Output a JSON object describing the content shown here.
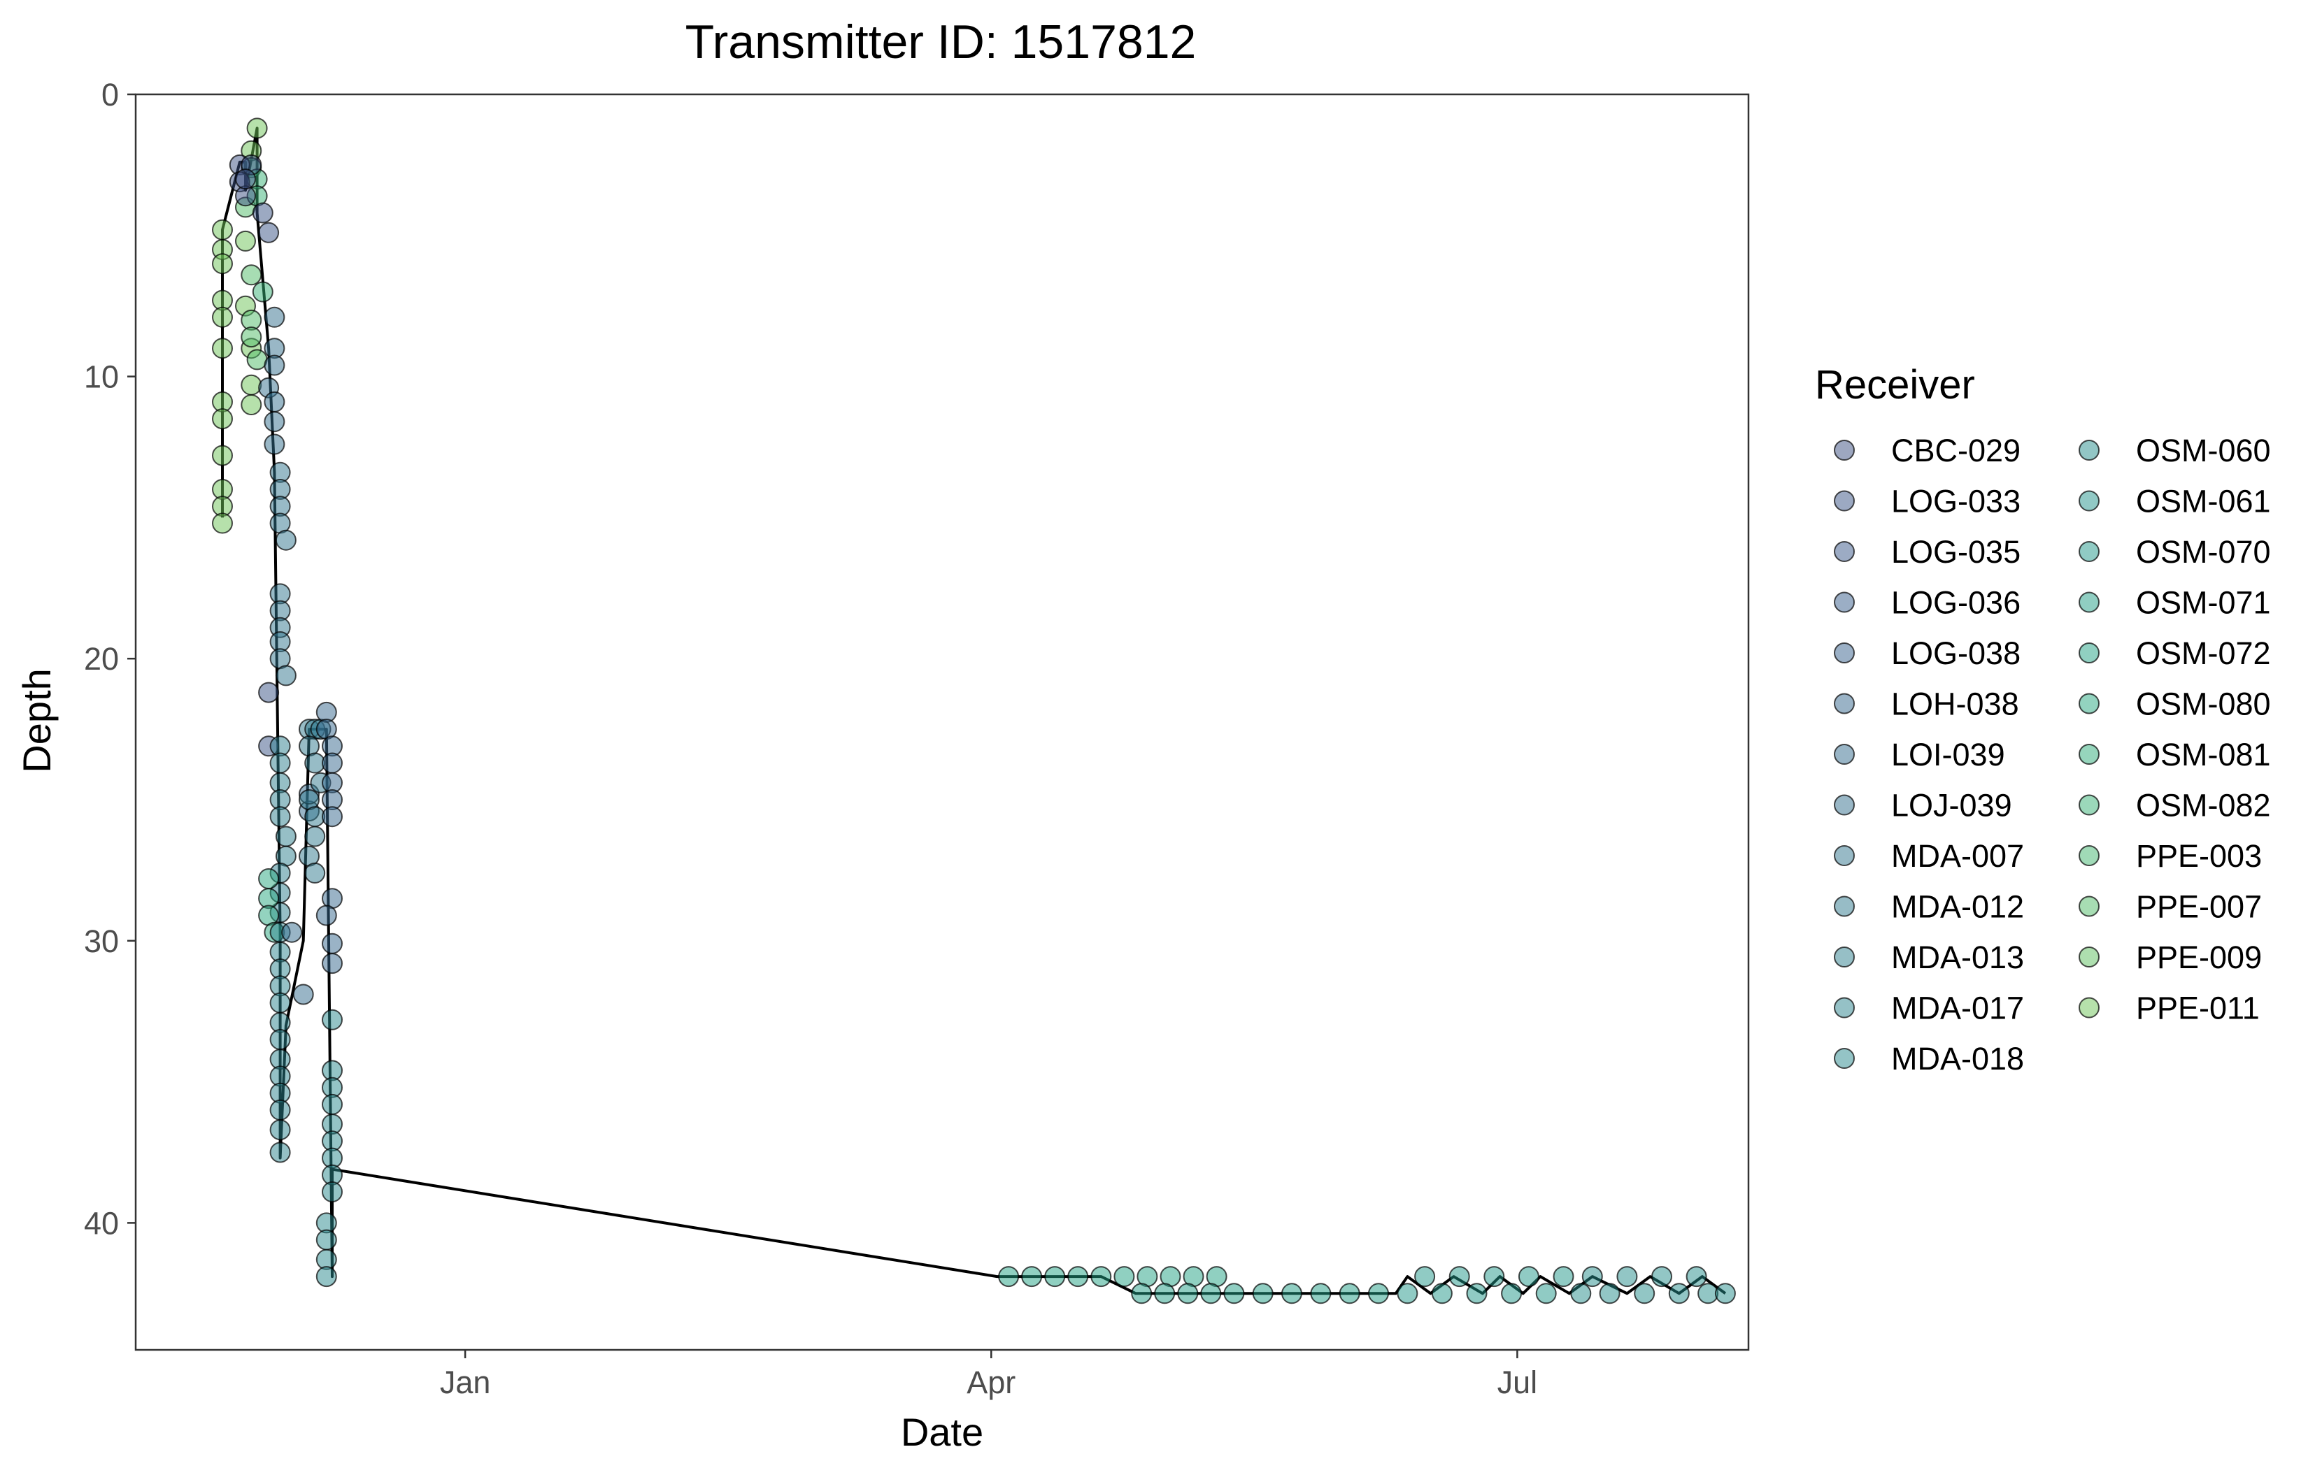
{
  "chart_data": {
    "type": "scatter",
    "title": "Transmitter ID: 1517812",
    "xlabel": "Date",
    "ylabel": "Depth",
    "y_reversed": true,
    "xlim": [
      "2023-11-05",
      "2024-08-10"
    ],
    "ylim": [
      0,
      44.5
    ],
    "x_ticks": [
      {
        "date": "2024-01-01",
        "label": "Jan"
      },
      {
        "date": "2024-04-01",
        "label": "Apr"
      },
      {
        "date": "2024-07-01",
        "label": "Jul"
      }
    ],
    "y_ticks": [
      0,
      10,
      20,
      30,
      40
    ],
    "grid": false,
    "legend": {
      "title": "Receiver",
      "position": "right",
      "columns": 2,
      "entries": [
        {
          "name": "CBC-029",
          "color": "#3b4f82"
        },
        {
          "name": "LOG-033",
          "color": "#3a5386"
        },
        {
          "name": "LOG-035",
          "color": "#39588a"
        },
        {
          "name": "LOG-036",
          "color": "#385d8c"
        },
        {
          "name": "LOG-038",
          "color": "#37628d"
        },
        {
          "name": "LOH-038",
          "color": "#36678e"
        },
        {
          "name": "LOI-039",
          "color": "#346b8e"
        },
        {
          "name": "LOJ-039",
          "color": "#33708e"
        },
        {
          "name": "MDA-007",
          "color": "#31758e"
        },
        {
          "name": "MDA-012",
          "color": "#2f7a8e"
        },
        {
          "name": "MDA-013",
          "color": "#2d7f8e"
        },
        {
          "name": "MDA-017",
          "color": "#2b848e"
        },
        {
          "name": "MDA-018",
          "color": "#29898e"
        },
        {
          "name": "OSM-060",
          "color": "#268e8c"
        },
        {
          "name": "OSM-061",
          "color": "#24938b"
        },
        {
          "name": "OSM-070",
          "color": "#229889"
        },
        {
          "name": "OSM-071",
          "color": "#219d86"
        },
        {
          "name": "OSM-072",
          "color": "#22a283"
        },
        {
          "name": "OSM-080",
          "color": "#27a77f"
        },
        {
          "name": "OSM-081",
          "color": "#2eac7a"
        },
        {
          "name": "OSM-082",
          "color": "#37b175"
        },
        {
          "name": "PPE-003",
          "color": "#42b66f"
        },
        {
          "name": "PPE-007",
          "color": "#4fbb68"
        },
        {
          "name": "PPE-009",
          "color": "#5ec060"
        },
        {
          "name": "PPE-011",
          "color": "#6ec457"
        }
      ]
    },
    "series": [
      {
        "receiver": "PPE-011",
        "points": [
          [
            "2023-11-20",
            4.8
          ],
          [
            "2023-11-20",
            5.5
          ],
          [
            "2023-11-20",
            6.0
          ],
          [
            "2023-11-20",
            7.3
          ],
          [
            "2023-11-20",
            7.9
          ],
          [
            "2023-11-20",
            9.0
          ],
          [
            "2023-11-20",
            10.9
          ],
          [
            "2023-11-20",
            11.5
          ],
          [
            "2023-11-20",
            12.8
          ],
          [
            "2023-11-20",
            14.0
          ],
          [
            "2023-11-20",
            14.6
          ],
          [
            "2023-11-20",
            15.2
          ],
          [
            "2023-11-26",
            1.2
          ],
          [
            "2023-11-25",
            2.0
          ],
          [
            "2023-11-24",
            5.2
          ],
          [
            "2023-11-24",
            7.5
          ],
          [
            "2023-11-25",
            9.0
          ],
          [
            "2023-11-25",
            10.3
          ],
          [
            "2023-11-25",
            11.0
          ]
        ]
      },
      {
        "receiver": "PPE-007",
        "points": [
          [
            "2023-11-24",
            4.0
          ],
          [
            "2023-11-25",
            6.4
          ],
          [
            "2023-11-25",
            8.0
          ],
          [
            "2023-11-25",
            8.6
          ],
          [
            "2023-11-26",
            9.4
          ]
        ]
      },
      {
        "receiver": "OSM-082",
        "points": [
          [
            "2023-11-25",
            2.6
          ],
          [
            "2023-11-26",
            3.0
          ],
          [
            "2023-11-26",
            3.6
          ],
          [
            "2023-11-27",
            7.0
          ]
        ]
      },
      {
        "receiver": "CBC-029",
        "points": [
          [
            "2023-11-23",
            2.5
          ],
          [
            "2023-11-23",
            3.1
          ],
          [
            "2023-11-24",
            3.6
          ],
          [
            "2023-11-25",
            2.5
          ],
          [
            "2023-11-24",
            3.0
          ]
        ]
      },
      {
        "receiver": "LOG-033",
        "points": [
          [
            "2023-11-27",
            4.2
          ],
          [
            "2023-11-28",
            4.9
          ],
          [
            "2023-11-28",
            21.2
          ],
          [
            "2023-11-28",
            23.1
          ]
        ]
      },
      {
        "receiver": "LOJ-039",
        "points": [
          [
            "2023-11-29",
            7.9
          ],
          [
            "2023-11-29",
            9.0
          ],
          [
            "2023-11-29",
            9.6
          ],
          [
            "2023-11-28",
            10.4
          ],
          [
            "2023-11-29",
            10.9
          ],
          [
            "2023-11-29",
            11.6
          ],
          [
            "2023-11-29",
            12.4
          ]
        ]
      },
      {
        "receiver": "MDA-007",
        "points": [
          [
            "2023-11-30",
            13.4
          ],
          [
            "2023-11-30",
            14.0
          ],
          [
            "2023-11-30",
            14.6
          ],
          [
            "2023-11-30",
            15.2
          ],
          [
            "2023-12-01",
            15.8
          ],
          [
            "2023-11-30",
            17.7
          ],
          [
            "2023-11-30",
            18.3
          ],
          [
            "2023-11-30",
            18.9
          ],
          [
            "2023-11-30",
            19.4
          ],
          [
            "2023-11-30",
            20.0
          ],
          [
            "2023-12-01",
            20.6
          ]
        ]
      },
      {
        "receiver": "MDA-013",
        "points": [
          [
            "2023-11-30",
            23.1
          ],
          [
            "2023-11-30",
            23.7
          ],
          [
            "2023-11-30",
            24.4
          ],
          [
            "2023-11-30",
            25.0
          ],
          [
            "2023-11-30",
            25.6
          ],
          [
            "2023-12-01",
            26.3
          ],
          [
            "2023-12-01",
            27.0
          ],
          [
            "2023-11-30",
            27.6
          ],
          [
            "2023-11-30",
            28.3
          ],
          [
            "2023-11-30",
            29.0
          ]
        ]
      },
      {
        "receiver": "OSM-080",
        "points": [
          [
            "2023-11-28",
            27.8
          ],
          [
            "2023-11-28",
            28.5
          ],
          [
            "2023-11-28",
            29.1
          ],
          [
            "2023-11-29",
            29.7
          ]
        ]
      },
      {
        "receiver": "MDA-017",
        "points": [
          [
            "2023-11-30",
            29.7
          ],
          [
            "2023-11-30",
            30.4
          ],
          [
            "2023-11-30",
            31.0
          ],
          [
            "2023-11-30",
            31.6
          ],
          [
            "2023-11-30",
            32.2
          ],
          [
            "2023-11-30",
            32.9
          ],
          [
            "2023-11-30",
            33.5
          ],
          [
            "2023-11-30",
            34.2
          ],
          [
            "2023-11-30",
            34.8
          ],
          [
            "2023-11-30",
            35.4
          ],
          [
            "2023-11-30",
            36.0
          ],
          [
            "2023-11-30",
            36.7
          ],
          [
            "2023-11-30",
            37.5
          ]
        ]
      },
      {
        "receiver": "LOI-039",
        "points": [
          [
            "2023-12-02",
            29.7
          ],
          [
            "2023-12-04",
            31.9
          ],
          [
            "2023-12-05",
            25.4
          ],
          [
            "2023-12-05",
            24.8
          ]
        ]
      },
      {
        "receiver": "MDA-012",
        "points": [
          [
            "2023-12-05",
            22.5
          ],
          [
            "2023-12-06",
            22.5
          ],
          [
            "2023-12-07",
            22.5
          ],
          [
            "2023-12-05",
            23.1
          ],
          [
            "2023-12-06",
            23.7
          ],
          [
            "2023-12-07",
            24.4
          ],
          [
            "2023-12-05",
            25.0
          ],
          [
            "2023-12-06",
            25.6
          ],
          [
            "2023-12-06",
            26.3
          ],
          [
            "2023-12-05",
            27.0
          ],
          [
            "2023-12-06",
            27.6
          ]
        ]
      },
      {
        "receiver": "LOH-038",
        "points": [
          [
            "2023-12-08",
            21.9
          ],
          [
            "2023-12-08",
            22.5
          ],
          [
            "2023-12-09",
            23.1
          ],
          [
            "2023-12-09",
            23.7
          ],
          [
            "2023-12-09",
            24.4
          ],
          [
            "2023-12-09",
            25.0
          ],
          [
            "2023-12-09",
            25.6
          ],
          [
            "2023-12-09",
            28.5
          ],
          [
            "2023-12-08",
            29.1
          ],
          [
            "2023-12-09",
            30.1
          ],
          [
            "2023-12-09",
            30.8
          ]
        ]
      },
      {
        "receiver": "MDA-018",
        "points": [
          [
            "2023-12-09",
            32.8
          ],
          [
            "2023-12-09",
            34.6
          ],
          [
            "2023-12-09",
            35.2
          ],
          [
            "2023-12-09",
            35.8
          ],
          [
            "2023-12-09",
            36.5
          ],
          [
            "2023-12-09",
            37.1
          ],
          [
            "2023-12-09",
            37.7
          ],
          [
            "2023-12-09",
            38.3
          ],
          [
            "2023-12-09",
            38.9
          ],
          [
            "2023-12-08",
            40.0
          ],
          [
            "2023-12-08",
            40.6
          ],
          [
            "2023-12-08",
            41.3
          ],
          [
            "2023-12-08",
            41.9
          ]
        ]
      },
      {
        "receiver": "OSM-072",
        "points": [
          [
            "2024-04-04",
            41.9
          ],
          [
            "2024-04-08",
            41.9
          ],
          [
            "2024-04-12",
            41.9
          ],
          [
            "2024-04-16",
            41.9
          ],
          [
            "2024-04-20",
            41.9
          ],
          [
            "2024-04-24",
            41.9
          ],
          [
            "2024-04-28",
            41.9
          ],
          [
            "2024-05-02",
            41.9
          ],
          [
            "2024-05-06",
            41.9
          ],
          [
            "2024-05-10",
            41.9
          ]
        ]
      },
      {
        "receiver": "OSM-071",
        "points": [
          [
            "2024-04-27",
            42.5
          ],
          [
            "2024-05-01",
            42.5
          ],
          [
            "2024-05-05",
            42.5
          ],
          [
            "2024-05-09",
            42.5
          ],
          [
            "2024-05-13",
            42.5
          ],
          [
            "2024-05-18",
            42.5
          ],
          [
            "2024-05-23",
            42.5
          ],
          [
            "2024-05-28",
            42.5
          ],
          [
            "2024-06-02",
            42.5
          ],
          [
            "2024-06-07",
            42.5
          ]
        ]
      },
      {
        "receiver": "OSM-070",
        "points": [
          [
            "2024-06-12",
            42.5
          ],
          [
            "2024-06-15",
            41.9
          ],
          [
            "2024-06-18",
            42.5
          ],
          [
            "2024-06-21",
            41.9
          ],
          [
            "2024-06-24",
            42.5
          ],
          [
            "2024-06-27",
            41.9
          ],
          [
            "2024-06-30",
            42.5
          ],
          [
            "2024-07-03",
            41.9
          ],
          [
            "2024-07-06",
            42.5
          ],
          [
            "2024-07-09",
            41.9
          ]
        ]
      },
      {
        "receiver": "OSM-060",
        "points": [
          [
            "2024-07-12",
            42.5
          ],
          [
            "2024-07-14",
            41.9
          ],
          [
            "2024-07-17",
            42.5
          ],
          [
            "2024-07-20",
            41.9
          ],
          [
            "2024-07-23",
            42.5
          ],
          [
            "2024-07-26",
            41.9
          ],
          [
            "2024-07-29",
            42.5
          ],
          [
            "2024-08-01",
            41.9
          ],
          [
            "2024-08-03",
            42.5
          ],
          [
            "2024-08-06",
            42.5
          ]
        ]
      }
    ],
    "track": [
      [
        "2023-11-20",
        15.0
      ],
      [
        "2023-11-20",
        4.8
      ],
      [
        "2023-11-23",
        2.4
      ],
      [
        "2023-11-24",
        2.4
      ],
      [
        "2023-11-24",
        3.4
      ],
      [
        "2023-11-26",
        1.2
      ],
      [
        "2023-11-26",
        4.2
      ],
      [
        "2023-11-28",
        9.0
      ],
      [
        "2023-11-29",
        13.4
      ],
      [
        "2023-11-30",
        29.7
      ],
      [
        "2023-11-30",
        37.7
      ],
      [
        "2023-12-01",
        33.0
      ],
      [
        "2023-12-04",
        30.0
      ],
      [
        "2023-12-05",
        22.5
      ],
      [
        "2023-12-07",
        22.5
      ],
      [
        "2023-12-08",
        22.5
      ],
      [
        "2023-12-09",
        41.9
      ],
      [
        "2023-12-09",
        38.1
      ],
      [
        "2024-04-02",
        41.9
      ],
      [
        "2024-04-20",
        41.9
      ],
      [
        "2024-04-26",
        42.5
      ],
      [
        "2024-06-10",
        42.5
      ],
      [
        "2024-06-12",
        41.9
      ],
      [
        "2024-06-16",
        42.5
      ],
      [
        "2024-06-20",
        41.9
      ],
      [
        "2024-06-25",
        42.5
      ],
      [
        "2024-06-28",
        41.9
      ],
      [
        "2024-07-02",
        42.5
      ],
      [
        "2024-07-05",
        41.9
      ],
      [
        "2024-07-10",
        42.5
      ],
      [
        "2024-07-14",
        41.9
      ],
      [
        "2024-07-20",
        42.5
      ],
      [
        "2024-07-24",
        41.9
      ],
      [
        "2024-07-29",
        42.5
      ],
      [
        "2024-08-02",
        41.9
      ],
      [
        "2024-08-06",
        42.5
      ]
    ]
  }
}
